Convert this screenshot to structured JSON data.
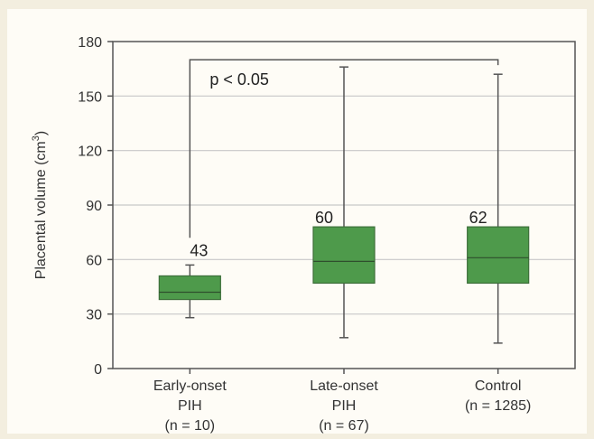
{
  "chart_data": {
    "type": "boxplot",
    "ylabel": "Placental volume (cm",
    "ylabel_sup": "3",
    "ylabel_close": ")",
    "ylim": [
      0,
      180
    ],
    "yticks": [
      0,
      30,
      60,
      90,
      120,
      150,
      180
    ],
    "grid": true,
    "categories": [
      {
        "lines": [
          "Early-onset",
          "PIH",
          "(n = 10)"
        ]
      },
      {
        "lines": [
          "Late-onset",
          "PIH",
          "(n = 67)"
        ]
      },
      {
        "lines": [
          "Control",
          "(n = 1285)"
        ]
      }
    ],
    "boxes": [
      {
        "min": 28,
        "q1": 38,
        "median": 42,
        "q3": 51,
        "max": 57,
        "label": "43"
      },
      {
        "min": 17,
        "q1": 47,
        "median": 59,
        "q3": 78,
        "max": 166,
        "label": "60"
      },
      {
        "min": 14,
        "q1": 47,
        "median": 61,
        "q3": 78,
        "max": 162,
        "label": "62"
      }
    ],
    "bracket": {
      "from": 0,
      "to": 2,
      "y": 170,
      "left_end": 72,
      "right_end": 167,
      "text": "p < 0.05"
    },
    "colors": {
      "box_fill": "#4e9a4b",
      "box_stroke": "#3d6f3a",
      "grid": "#c8c8c8",
      "axis": "#555555"
    }
  }
}
